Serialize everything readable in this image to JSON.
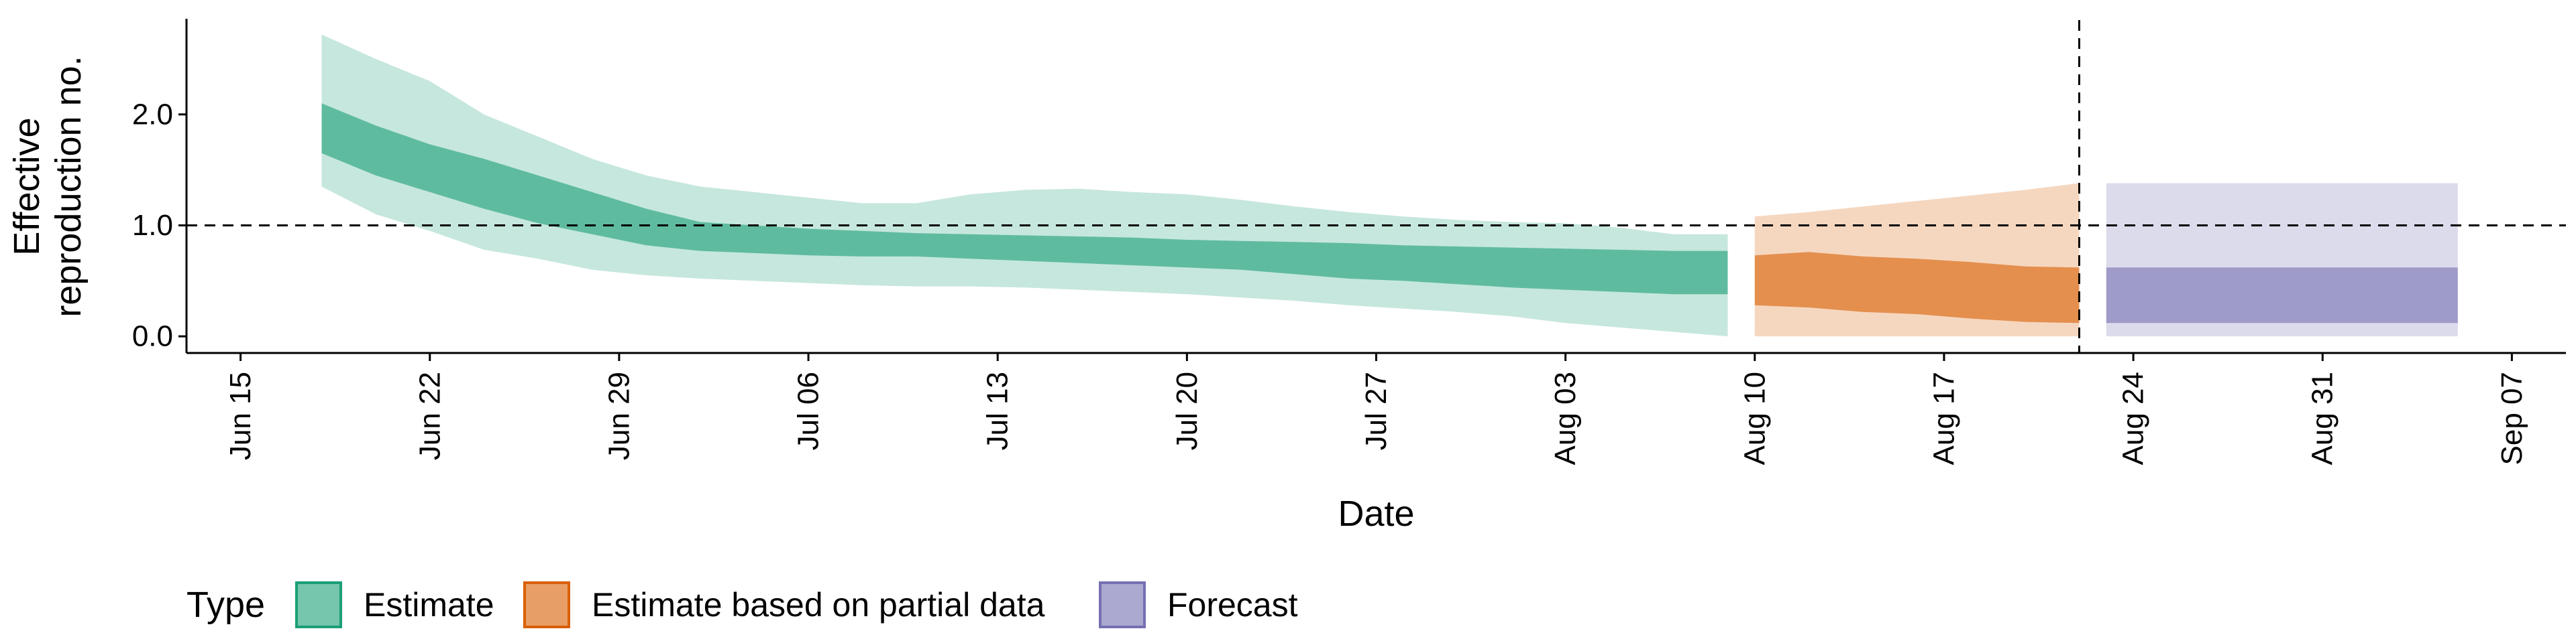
{
  "chart_data": {
    "type": "area",
    "xlabel": "Date",
    "ylabel_lines": [
      "Effective",
      "reproduction no."
    ],
    "ylim": [
      -0.15,
      2.85
    ],
    "yticks": [
      0.0,
      1.0,
      2.0
    ],
    "ytick_labels": [
      "0.0",
      "1.0",
      "2.0"
    ],
    "xlim": [
      "2020-06-13",
      "2020-09-09"
    ],
    "xticks": [
      "2020-06-15",
      "2020-06-22",
      "2020-06-29",
      "2020-07-06",
      "2020-07-13",
      "2020-07-20",
      "2020-07-27",
      "2020-08-03",
      "2020-08-10",
      "2020-08-17",
      "2020-08-24",
      "2020-08-31",
      "2020-09-07"
    ],
    "xtick_labels": [
      "Jun 15",
      "Jun 22",
      "Jun 29",
      "Jul 06",
      "Jul 13",
      "Jul 20",
      "Jul 27",
      "Aug 03",
      "Aug 10",
      "Aug 17",
      "Aug 24",
      "Aug 31",
      "Sep 07"
    ],
    "reference_line_y": 1.0,
    "vertical_line_x": "2020-08-22",
    "grid": false,
    "legend": {
      "title": "Type",
      "position": "bottom",
      "entries": [
        "Estimate",
        "Estimate based on partial data",
        "Forecast"
      ]
    },
    "series": [
      {
        "name": "Estimate",
        "color": "#1b9e77",
        "x": [
          "2020-06-18",
          "2020-06-20",
          "2020-06-22",
          "2020-06-24",
          "2020-06-26",
          "2020-06-28",
          "2020-06-30",
          "2020-07-02",
          "2020-07-04",
          "2020-07-06",
          "2020-07-08",
          "2020-07-10",
          "2020-07-12",
          "2020-07-14",
          "2020-07-16",
          "2020-07-18",
          "2020-07-20",
          "2020-07-22",
          "2020-07-24",
          "2020-07-26",
          "2020-07-28",
          "2020-07-30",
          "2020-08-01",
          "2020-08-03",
          "2020-08-05",
          "2020-08-07",
          "2020-08-09"
        ],
        "outer_upper": [
          2.72,
          2.5,
          2.3,
          2.0,
          1.8,
          1.6,
          1.45,
          1.35,
          1.3,
          1.25,
          1.2,
          1.2,
          1.28,
          1.32,
          1.33,
          1.3,
          1.28,
          1.23,
          1.17,
          1.12,
          1.08,
          1.05,
          1.03,
          1.02,
          0.98,
          0.92,
          0.92
        ],
        "inner_upper": [
          2.1,
          1.9,
          1.73,
          1.6,
          1.45,
          1.3,
          1.15,
          1.03,
          1.0,
          0.97,
          0.95,
          0.93,
          0.92,
          0.91,
          0.9,
          0.89,
          0.87,
          0.86,
          0.85,
          0.84,
          0.82,
          0.81,
          0.8,
          0.79,
          0.78,
          0.77,
          0.77
        ],
        "inner_lower": [
          1.65,
          1.45,
          1.3,
          1.15,
          1.02,
          0.92,
          0.82,
          0.77,
          0.75,
          0.73,
          0.72,
          0.72,
          0.7,
          0.68,
          0.66,
          0.64,
          0.62,
          0.6,
          0.56,
          0.52,
          0.5,
          0.47,
          0.44,
          0.42,
          0.4,
          0.38,
          0.38
        ],
        "outer_lower": [
          1.35,
          1.1,
          0.95,
          0.78,
          0.7,
          0.6,
          0.55,
          0.52,
          0.5,
          0.48,
          0.46,
          0.45,
          0.45,
          0.44,
          0.42,
          0.4,
          0.38,
          0.35,
          0.32,
          0.28,
          0.25,
          0.22,
          0.18,
          0.12,
          0.08,
          0.04,
          0.0
        ]
      },
      {
        "name": "Estimate based on partial data",
        "color": "#d95f02",
        "x": [
          "2020-08-10",
          "2020-08-12",
          "2020-08-14",
          "2020-08-16",
          "2020-08-18",
          "2020-08-20",
          "2020-08-22"
        ],
        "outer_upper": [
          1.08,
          1.12,
          1.17,
          1.22,
          1.27,
          1.32,
          1.38
        ],
        "inner_upper": [
          0.73,
          0.76,
          0.72,
          0.7,
          0.67,
          0.63,
          0.62
        ],
        "inner_lower": [
          0.28,
          0.26,
          0.22,
          0.2,
          0.16,
          0.13,
          0.12
        ],
        "outer_lower": [
          0.0,
          0.0,
          0.0,
          0.0,
          0.0,
          0.0,
          0.0
        ]
      },
      {
        "name": "Forecast",
        "color": "#7570b3",
        "x": [
          "2020-08-23",
          "2020-09-05"
        ],
        "outer_upper": [
          1.38,
          1.38
        ],
        "inner_upper": [
          0.62,
          0.62
        ],
        "inner_lower": [
          0.12,
          0.12
        ],
        "outer_lower": [
          0.0,
          0.0
        ]
      }
    ]
  }
}
